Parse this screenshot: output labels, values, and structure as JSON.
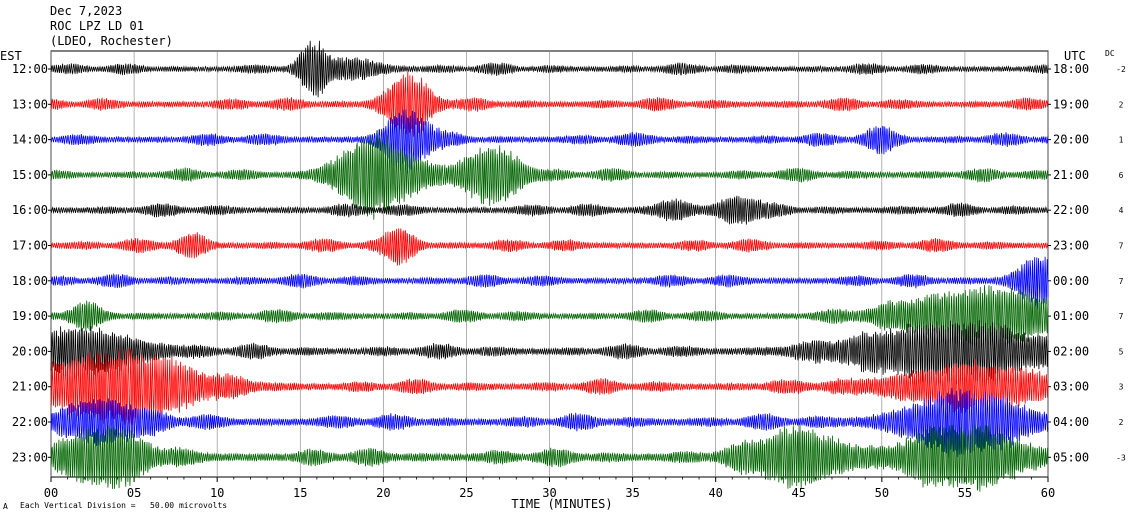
{
  "header": {
    "date": "Dec 7,2023",
    "station": "ROC LPZ LD 01",
    "network": "(LDEO, Rochester)"
  },
  "corner_labels": {
    "left_timezone": "EST",
    "right_timezone": "UTC",
    "dc_label": "DC"
  },
  "footer": {
    "scale_note": "Each Vertical Division =   50.00 microvolts",
    "scale_mark": "A"
  },
  "chart_data": {
    "type": "line",
    "title": "",
    "xlabel": "TIME (MINUTES)",
    "ylabel": "",
    "xlim": [
      0,
      60
    ],
    "x_ticks": [
      "00",
      "05",
      "10",
      "15",
      "20",
      "25",
      "30",
      "35",
      "40",
      "45",
      "50",
      "55",
      "60"
    ],
    "trace_colors": [
      "#000000",
      "#ff0000",
      "#0000ff",
      "#006400"
    ],
    "grid": true,
    "rows": [
      {
        "est": "12:00",
        "utc": "18:00",
        "dc": "-2",
        "amp": 7,
        "events": [
          {
            "t": 15.8,
            "a": 22,
            "w": 0.9
          },
          {
            "t": 18,
            "a": 10,
            "w": 2
          }
        ]
      },
      {
        "est": "13:00",
        "utc": "19:00",
        "dc": "2",
        "amp": 8,
        "events": [
          {
            "t": 21.5,
            "a": 30,
            "w": 1.5
          }
        ]
      },
      {
        "est": "14:00",
        "utc": "20:00",
        "dc": "1",
        "amp": 8,
        "events": [
          {
            "t": 21.5,
            "a": 30,
            "w": 1.5
          },
          {
            "t": 50,
            "a": 12,
            "w": 1
          }
        ]
      },
      {
        "est": "15:00",
        "utc": "21:00",
        "dc": "6",
        "amp": 8,
        "events": [
          {
            "t": 19.5,
            "a": 40,
            "w": 2.5
          },
          {
            "t": 26.5,
            "a": 30,
            "w": 2
          }
        ]
      },
      {
        "est": "16:00",
        "utc": "22:00",
        "dc": "4",
        "amp": 8,
        "events": [
          {
            "t": 41.5,
            "a": 14,
            "w": 1.2
          },
          {
            "t": 37.5,
            "a": 10,
            "w": 1.2
          }
        ]
      },
      {
        "est": "17:00",
        "utc": "23:00",
        "dc": "7",
        "amp": 8,
        "events": [
          {
            "t": 21,
            "a": 18,
            "w": 1
          },
          {
            "t": 8.5,
            "a": 10,
            "w": 1
          }
        ]
      },
      {
        "est": "18:00",
        "utc": "00:00",
        "dc": "7",
        "amp": 8,
        "events": [
          {
            "t": 59.5,
            "a": 25,
            "w": 1.5
          }
        ]
      },
      {
        "est": "19:00",
        "utc": "01:00",
        "dc": "7",
        "amp": 8,
        "events": [
          {
            "t": 56,
            "a": 30,
            "w": 5
          },
          {
            "t": 2,
            "a": 10,
            "w": 1
          }
        ]
      },
      {
        "est": "20:00",
        "utc": "02:00",
        "dc": "5",
        "amp": 9,
        "events": [
          {
            "t": 54,
            "a": 30,
            "w": 6
          },
          {
            "t": 2,
            "a": 22,
            "w": 4
          }
        ]
      },
      {
        "est": "21:00",
        "utc": "03:00",
        "dc": "3",
        "amp": 9,
        "events": [
          {
            "t": 4,
            "a": 36,
            "w": 5
          },
          {
            "t": 55,
            "a": 22,
            "w": 5
          }
        ]
      },
      {
        "est": "22:00",
        "utc": "04:00",
        "dc": "2",
        "amp": 10,
        "events": [
          {
            "t": 55,
            "a": 30,
            "w": 4
          },
          {
            "t": 3,
            "a": 22,
            "w": 3
          }
        ]
      },
      {
        "est": "23:00",
        "utc": "05:00",
        "dc": "-3",
        "amp": 11,
        "events": [
          {
            "t": 45,
            "a": 28,
            "w": 3
          },
          {
            "t": 55,
            "a": 30,
            "w": 4
          },
          {
            "t": 3,
            "a": 28,
            "w": 3
          }
        ]
      }
    ]
  }
}
